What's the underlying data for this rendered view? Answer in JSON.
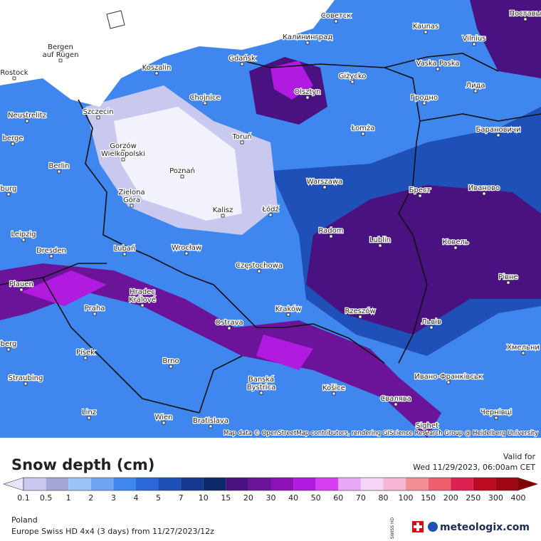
{
  "map": {
    "cities": [
      "Советск",
      "Kaunas",
      "Поставы",
      "Калининград",
      "Vilnius",
      "Bergen",
      "auf Rügen",
      "Gdańsk",
      "Koszalin",
      "Rostock",
      "Vaska Paska",
      "Giżycko",
      "Лида",
      "Olsztyn",
      "Chojnice",
      "Гродно",
      "Szczecin",
      "Neustrelitz",
      "Łomża",
      "Барановичи",
      "Toruń",
      "berge",
      "Gorzów",
      "Wielkopolski",
      "Berlin",
      "Poznań",
      "Warszawa",
      "Брест",
      "Иваново",
      "burg",
      "Zielona",
      "Góra",
      "Kalisz",
      "Łódź",
      "Radom",
      "Leipzig",
      "Lublin",
      "Ковель",
      "Dresden",
      "Lubań",
      "Wrocław",
      "Częstochowa",
      "Plauen",
      "Рівне",
      "Hradec",
      "Králové",
      "Praha",
      "Kraków",
      "Rzeszów",
      "Львів",
      "Ostrava",
      "berg",
      "Хмельни",
      "Písek",
      "Brno",
      "Ивано-Франківськ",
      "Straubing",
      "Banská",
      "Bystrica",
      "Košice",
      "Свалява",
      "Linz",
      "Чернівці",
      "Wien",
      "Bratislava",
      "Sighet"
    ],
    "attribution": "Map data © OpenStreetMap contributors, rendering GIScience Research Group @ Heidelberg University"
  },
  "legend": {
    "title": "Snow depth (cm)",
    "ticks": [
      "0.1",
      "0.5",
      "1",
      "2",
      "3",
      "4",
      "5",
      "7",
      "10",
      "15",
      "20",
      "30",
      "40",
      "50",
      "60",
      "70",
      "80",
      "100",
      "150",
      "200",
      "250",
      "300",
      "400"
    ],
    "colors": [
      "#e6e6fa",
      "#c9c9f0",
      "#a6a6d6",
      "#9cc2f7",
      "#6ea6f4",
      "#3f86ee",
      "#2a67d8",
      "#1f50b8",
      "#16388e",
      "#0d2a6b",
      "#4a1280",
      "#6b1499",
      "#8c12b8",
      "#b11adf",
      "#d63ef2",
      "#e9a8f5",
      "#f5d4f8",
      "#f6b6d3",
      "#f38f92",
      "#ee5f70",
      "#dc2050",
      "#be0a22",
      "#9e0612",
      "#7e0202"
    ]
  },
  "valid": {
    "label": "Valid for",
    "time": "Wed 11/29/2023, 06:00am CET"
  },
  "footer": {
    "region": "Poland",
    "model": "Europe Swiss HD 4x4  (3 days)  from  11/27/2023/12z",
    "badge": "SWISS HD",
    "brand": "meteologix.com"
  }
}
